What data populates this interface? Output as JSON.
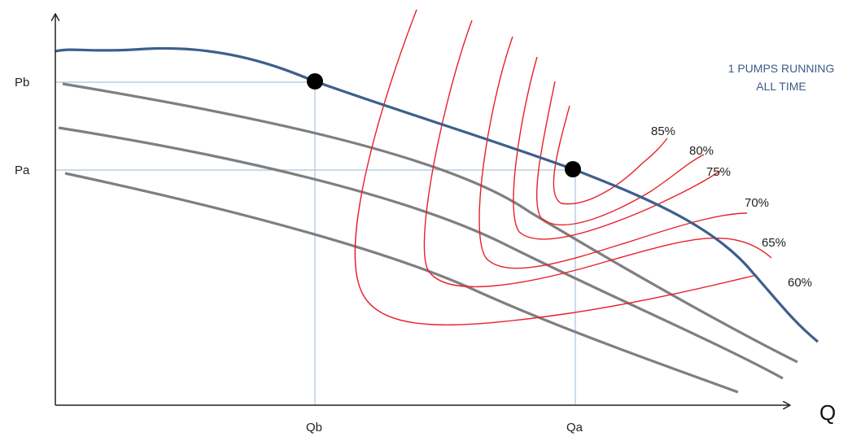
{
  "axes": {
    "x_label": "Q",
    "y_labels": {
      "pb": "Pb",
      "pa": "Pa"
    },
    "x_ticks": {
      "qb": "Qb",
      "qa": "Qa"
    }
  },
  "note": {
    "line1": "1 PUMPS RUNNING",
    "line2": "ALL TIME"
  },
  "efficiency_labels": [
    "85%",
    "80%",
    "75%",
    "70%",
    "65%",
    "60%"
  ],
  "colors": {
    "pump_curve": "#3d5f8c",
    "system_curves": "#7f7f7f",
    "efficiency_curves": "#e8202a",
    "guides": "#a9c3e0",
    "note_text": "#3d5a8a"
  }
}
